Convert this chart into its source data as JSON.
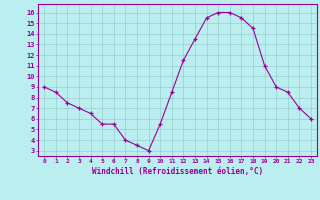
{
  "x": [
    0,
    1,
    2,
    3,
    4,
    5,
    6,
    7,
    8,
    9,
    10,
    11,
    12,
    13,
    14,
    15,
    16,
    17,
    18,
    19,
    20,
    21,
    22,
    23
  ],
  "y": [
    9,
    8.5,
    7.5,
    7,
    6.5,
    5.5,
    5.5,
    4,
    3.5,
    3,
    5.5,
    8.5,
    11.5,
    13.5,
    15.5,
    16,
    16,
    15.5,
    14.5,
    11,
    9,
    8.5,
    7,
    6
  ],
  "line_color": "#990099",
  "marker": "+",
  "bg_color": "#bbeeee",
  "grid_color": "#99cccc",
  "xlabel": "Windchill (Refroidissement éolien,°C)",
  "xlabel_color": "#990099",
  "ylabel_ticks": [
    3,
    4,
    5,
    6,
    7,
    8,
    9,
    10,
    11,
    12,
    13,
    14,
    15,
    16
  ],
  "xtick_labels": [
    "0",
    "1",
    "2",
    "3",
    "4",
    "5",
    "6",
    "7",
    "8",
    "9",
    "10",
    "11",
    "12",
    "13",
    "14",
    "15",
    "16",
    "17",
    "18",
    "19",
    "20",
    "21",
    "22",
    "23"
  ],
  "ylim": [
    2.5,
    16.8
  ],
  "xlim": [
    -0.5,
    23.5
  ],
  "tick_color": "#990099",
  "axis_color": "#990099",
  "title_color": "#990099"
}
